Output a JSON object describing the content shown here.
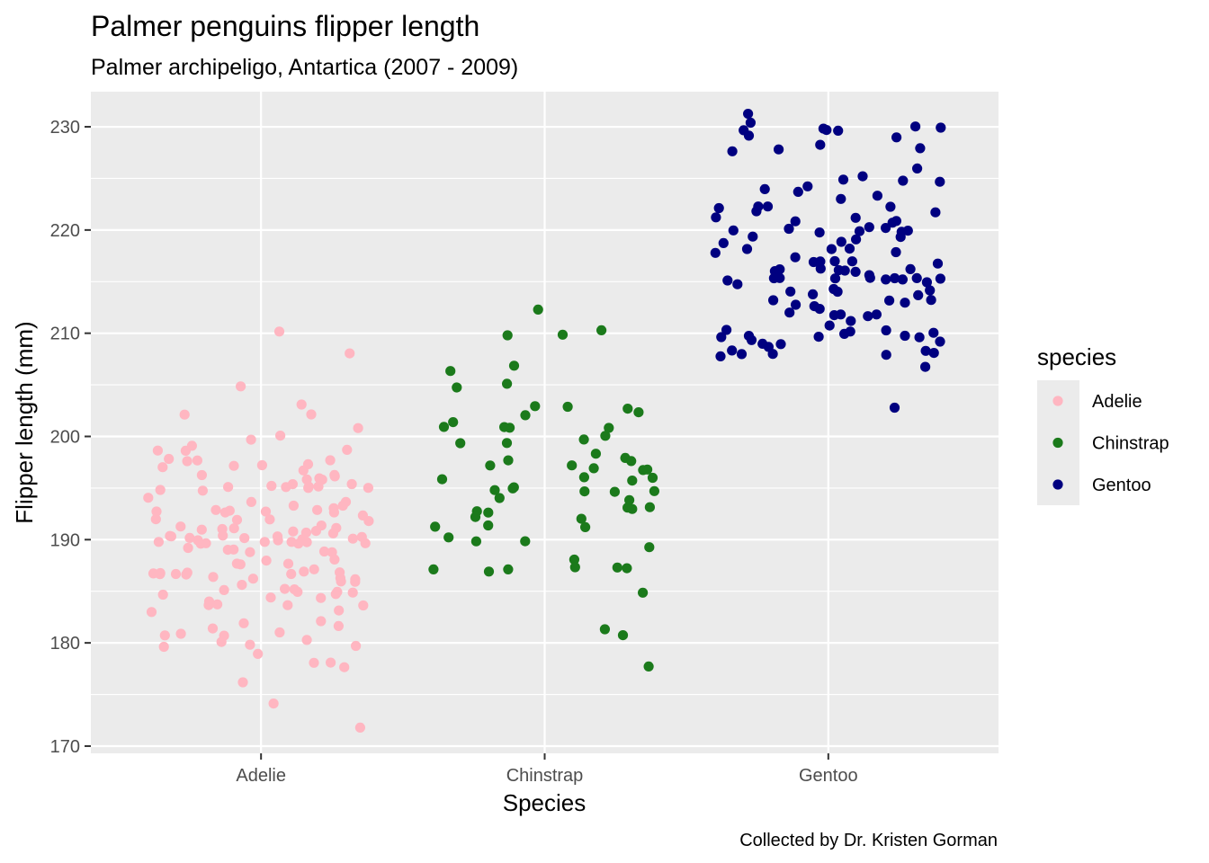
{
  "chart_data": {
    "type": "scatter",
    "title": "Palmer penguins flipper length",
    "subtitle": "Palmer archipeligo, Antartica (2007 - 2009)",
    "caption": "Collected by Dr. Kristen Gorman",
    "xlabel": "Species",
    "ylabel": "Flipper length (mm)",
    "categories": [
      "Adelie",
      "Chinstrap",
      "Gentoo"
    ],
    "ylim": [
      169.3,
      233.4
    ],
    "yticks": [
      170,
      180,
      190,
      200,
      210,
      220,
      230
    ],
    "grid": true,
    "jitter_width": 0.4,
    "legend": {
      "title": "species",
      "position": "right",
      "entries": [
        "Adelie",
        "Chinstrap",
        "Gentoo"
      ]
    },
    "series": [
      {
        "name": "Adelie",
        "color": "#ffb6c1",
        "values": [
          181,
          186,
          195,
          193,
          190,
          181,
          195,
          193,
          190,
          186,
          180,
          182,
          191,
          198,
          185,
          195,
          197,
          184,
          194,
          174,
          180,
          189,
          185,
          180,
          187,
          183,
          187,
          172,
          180,
          178,
          178,
          188,
          184,
          195,
          196,
          190,
          180,
          181,
          184,
          182,
          195,
          186,
          196,
          185,
          190,
          182,
          179,
          190,
          191,
          186,
          188,
          190,
          200,
          187,
          191,
          186,
          193,
          181,
          194,
          185,
          195,
          185,
          192,
          184,
          192,
          195,
          188,
          190,
          198,
          190,
          190,
          196,
          197,
          190,
          195,
          191,
          184,
          187,
          195,
          189,
          196,
          187,
          193,
          191,
          194,
          190,
          189,
          189,
          190,
          202,
          205,
          185,
          186,
          187,
          208,
          190,
          196,
          178,
          192,
          192,
          203,
          183,
          190,
          193,
          184,
          199,
          190,
          181,
          197,
          198,
          191,
          193,
          197,
          191,
          196,
          188,
          199,
          189,
          189,
          187,
          198,
          176,
          202,
          186,
          199,
          191,
          195,
          191,
          210,
          190,
          197,
          193,
          199,
          187,
          190,
          191,
          200,
          185,
          193,
          193,
          187,
          188,
          190,
          192,
          185,
          190,
          184,
          195,
          193,
          187,
          201
        ]
      },
      {
        "name": "Chinstrap",
        "color": "#1b7a1b",
        "values": [
          192,
          196,
          193,
          188,
          197,
          198,
          178,
          197,
          195,
          198,
          193,
          194,
          185,
          201,
          190,
          201,
          197,
          181,
          190,
          195,
          181,
          191,
          187,
          193,
          195,
          197,
          200,
          200,
          191,
          205,
          187,
          201,
          187,
          203,
          195,
          199,
          195,
          210,
          192,
          205,
          210,
          187,
          196,
          196,
          196,
          201,
          190,
          212,
          187,
          198,
          199,
          201,
          193,
          203,
          187,
          197,
          191,
          203,
          202,
          194,
          206,
          189,
          195,
          207,
          202,
          193,
          210,
          198
        ]
      },
      {
        "name": "Gentoo",
        "color": "#000080",
        "values": [
          211,
          230,
          210,
          218,
          215,
          210,
          211,
          219,
          209,
          215,
          214,
          216,
          214,
          213,
          210,
          217,
          210,
          221,
          209,
          222,
          218,
          215,
          213,
          215,
          215,
          215,
          216,
          215,
          210,
          220,
          222,
          209,
          207,
          230,
          220,
          220,
          213,
          219,
          208,
          208,
          208,
          225,
          210,
          216,
          222,
          217,
          210,
          225,
          213,
          215,
          210,
          220,
          210,
          225,
          217,
          220,
          208,
          220,
          208,
          224,
          208,
          221,
          214,
          231,
          219,
          230,
          214,
          229,
          220,
          223,
          216,
          221,
          221,
          217,
          216,
          230,
          209,
          220,
          215,
          223,
          212,
          221,
          212,
          224,
          212,
          228,
          218,
          218,
          212,
          230,
          218,
          228,
          212,
          224,
          214,
          226,
          216,
          222,
          203,
          225,
          219,
          228,
          215,
          228,
          216,
          215,
          210,
          219,
          208,
          209,
          216,
          229,
          213,
          230,
          217,
          230,
          217,
          222,
          214,
          215,
          222,
          212,
          213
        ]
      }
    ]
  }
}
